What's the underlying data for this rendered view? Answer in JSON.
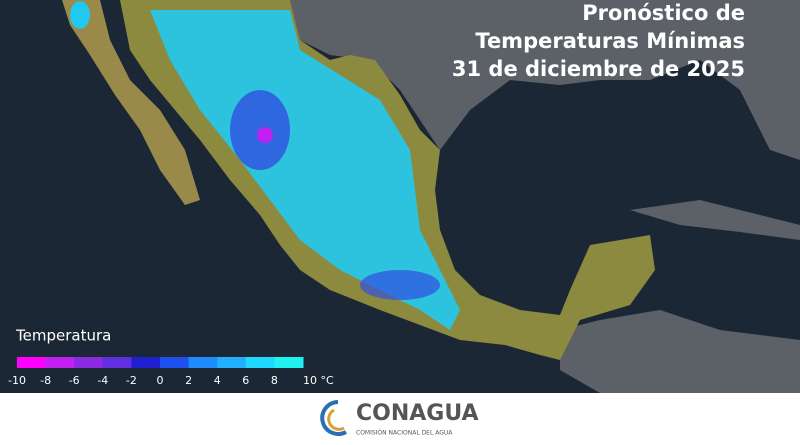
{
  "header": {
    "title_lines": [
      "Pronóstico de",
      "Temperaturas Mínimas",
      "31 de diciembre de 2025"
    ]
  },
  "legend": {
    "title": "Temperatura",
    "colors": [
      "#ff00ff",
      "#c020f0",
      "#8a2be2",
      "#6030e0",
      "#2020d0",
      "#1e50f0",
      "#1e8cff",
      "#20b0ff",
      "#20d8ff",
      "#20f0f0"
    ],
    "ticks": [
      "-10",
      "-8",
      "-6",
      "-4",
      "-2",
      "0",
      "2",
      "4",
      "6",
      "8",
      "10 °C"
    ]
  },
  "footer": {
    "logo_name": "CONAGUA",
    "logo_subtitle": "COMISIÓN NACIONAL DEL AGUA"
  }
}
